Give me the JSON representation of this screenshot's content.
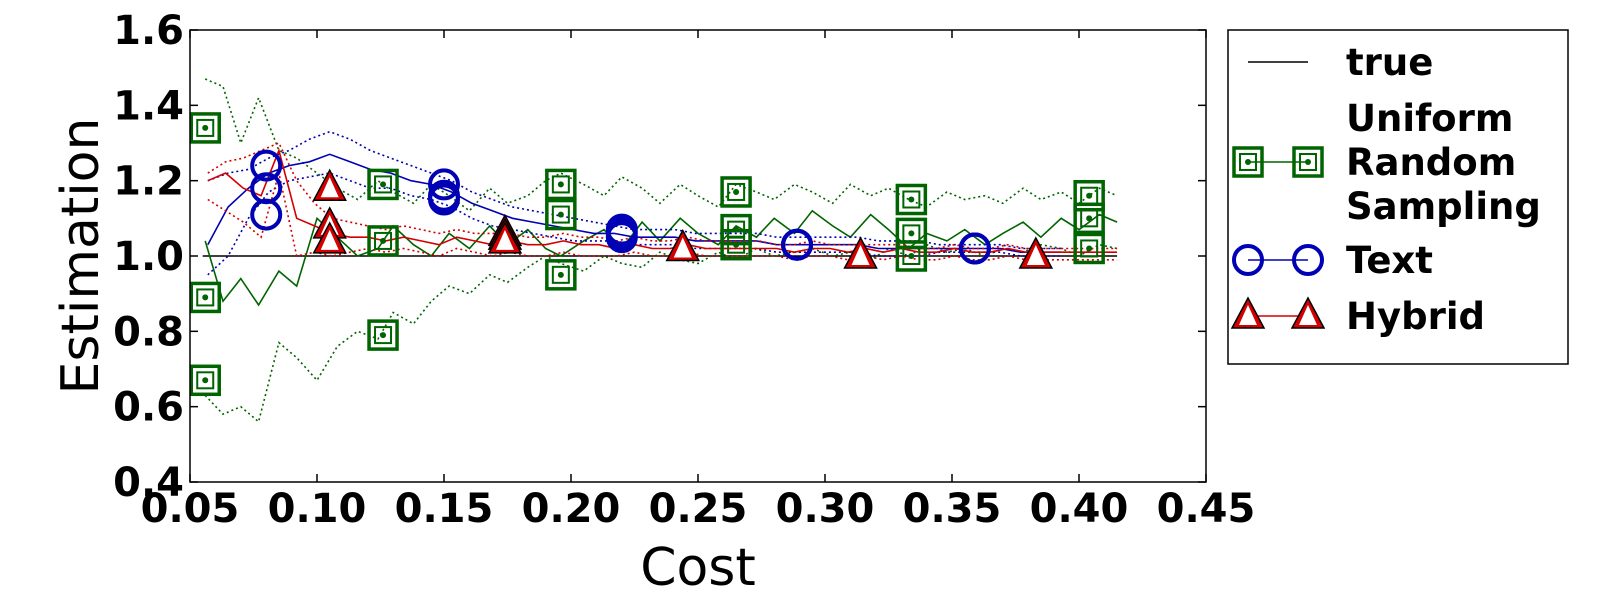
{
  "chart_data": {
    "type": "line",
    "xlabel": "Cost",
    "ylabel": "Estimation",
    "xlim": [
      0.05,
      0.45
    ],
    "ylim": [
      0.4,
      1.6
    ],
    "xticks": [
      "0.05",
      "0.10",
      "0.15",
      "0.20",
      "0.25",
      "0.30",
      "0.35",
      "0.40",
      "0.45"
    ],
    "yticks": [
      "0.4",
      "0.6",
      "0.8",
      "1.0",
      "1.2",
      "1.4",
      "1.6"
    ],
    "legend_position": "outside-right",
    "legend": [
      {
        "key": "true",
        "lines": [
          "true"
        ],
        "color": "#000000",
        "marker": "none"
      },
      {
        "key": "uniform",
        "lines": [
          "Uniform",
          "Random",
          "Sampling"
        ],
        "color": "#006400",
        "marker": "square"
      },
      {
        "key": "text",
        "lines": [
          "Text"
        ],
        "color": "#0000b4",
        "marker": "circle"
      },
      {
        "key": "hybrid",
        "lines": [
          "Hybrid"
        ],
        "color": "#d40000",
        "marker": "triangle"
      }
    ],
    "series": [
      {
        "key": "true",
        "name": "true",
        "color": "#000000",
        "x": [
          0.055,
          0.415
        ],
        "mean": [
          1.0,
          1.0
        ]
      },
      {
        "key": "uniform",
        "name": "Uniform Random Sampling",
        "color": "#006400",
        "x": [
          0.056,
          0.063,
          0.07,
          0.077,
          0.085,
          0.092,
          0.1,
          0.108,
          0.116,
          0.124,
          0.13,
          0.138,
          0.145,
          0.152,
          0.16,
          0.168,
          0.175,
          0.183,
          0.19,
          0.196,
          0.205,
          0.213,
          0.22,
          0.228,
          0.235,
          0.243,
          0.25,
          0.258,
          0.265,
          0.273,
          0.28,
          0.288,
          0.295,
          0.303,
          0.31,
          0.318,
          0.325,
          0.333,
          0.34,
          0.348,
          0.355,
          0.363,
          0.37,
          0.378,
          0.385,
          0.393,
          0.4,
          0.408,
          0.415
        ],
        "mean": [
          1.04,
          0.88,
          0.94,
          0.87,
          0.96,
          0.92,
          1.1,
          1.05,
          1.0,
          1.02,
          1.08,
          1.03,
          1.0,
          1.06,
          1.02,
          1.08,
          1.03,
          1.07,
          1.02,
          1.0,
          1.04,
          1.07,
          1.02,
          1.09,
          1.04,
          1.1,
          1.06,
          1.03,
          1.08,
          1.05,
          1.1,
          1.06,
          1.12,
          1.08,
          1.05,
          1.11,
          1.07,
          1.02,
          1.06,
          1.04,
          1.07,
          1.03,
          1.06,
          1.09,
          1.05,
          1.1,
          1.07,
          1.11,
          1.09
        ],
        "upper": [
          1.47,
          1.45,
          1.3,
          1.42,
          1.28,
          1.26,
          1.22,
          1.18,
          1.15,
          1.2,
          1.17,
          1.14,
          1.19,
          1.16,
          1.12,
          1.18,
          1.14,
          1.16,
          1.2,
          1.22,
          1.19,
          1.16,
          1.21,
          1.18,
          1.14,
          1.19,
          1.16,
          1.13,
          1.19,
          1.17,
          1.15,
          1.19,
          1.17,
          1.14,
          1.19,
          1.16,
          1.18,
          1.15,
          1.13,
          1.17,
          1.15,
          1.16,
          1.14,
          1.18,
          1.15,
          1.17,
          1.14,
          1.18,
          1.16
        ],
        "lower": [
          0.63,
          0.58,
          0.6,
          0.56,
          0.77,
          0.73,
          0.67,
          0.76,
          0.8,
          0.78,
          0.85,
          0.82,
          0.88,
          0.92,
          0.9,
          0.95,
          0.93,
          0.97,
          1.0,
          0.98,
          0.96,
          1.0,
          0.98,
          0.97,
          1.01,
          0.99,
          0.98,
          1.01,
          0.99,
          1.02,
          1.0,
          1.01,
          1.02,
          1.0,
          1.01,
          0.99,
          1.02,
          1.0,
          1.03,
          1.01,
          1.02,
          1.0,
          1.02,
          1.01,
          1.03,
          1.02,
          1.0,
          1.03,
          1.02
        ],
        "marker_points": [
          [
            0.056,
            1.34
          ],
          [
            0.056,
            0.89
          ],
          [
            0.056,
            0.67
          ],
          [
            0.126,
            1.19
          ],
          [
            0.126,
            1.04
          ],
          [
            0.126,
            0.79
          ],
          [
            0.196,
            1.19
          ],
          [
            0.196,
            1.11
          ],
          [
            0.196,
            0.95
          ],
          [
            0.265,
            1.17
          ],
          [
            0.265,
            1.07
          ],
          [
            0.265,
            1.03
          ],
          [
            0.334,
            1.15
          ],
          [
            0.334,
            1.06
          ],
          [
            0.334,
            1.0
          ],
          [
            0.404,
            1.16
          ],
          [
            0.404,
            1.1
          ],
          [
            0.404,
            1.02
          ]
        ]
      },
      {
        "key": "text",
        "name": "Text",
        "color": "#0000b4",
        "x": [
          0.057,
          0.065,
          0.073,
          0.081,
          0.089,
          0.097,
          0.105,
          0.113,
          0.121,
          0.129,
          0.137,
          0.145,
          0.153,
          0.161,
          0.169,
          0.177,
          0.185,
          0.193,
          0.201,
          0.209,
          0.217,
          0.225,
          0.233,
          0.241,
          0.249,
          0.257,
          0.265,
          0.273,
          0.281,
          0.289,
          0.297,
          0.305,
          0.313,
          0.321,
          0.329,
          0.337,
          0.345,
          0.353,
          0.361,
          0.369,
          0.377,
          0.385,
          0.393
        ],
        "mean": [
          1.03,
          1.13,
          1.18,
          1.22,
          1.24,
          1.25,
          1.27,
          1.25,
          1.23,
          1.22,
          1.2,
          1.19,
          1.17,
          1.14,
          1.12,
          1.1,
          1.09,
          1.08,
          1.07,
          1.06,
          1.06,
          1.05,
          1.05,
          1.05,
          1.04,
          1.04,
          1.04,
          1.04,
          1.03,
          1.03,
          1.03,
          1.03,
          1.03,
          1.02,
          1.02,
          1.02,
          1.02,
          1.02,
          1.02,
          1.02,
          1.01,
          1.01,
          1.01
        ],
        "upper": [
          1.2,
          1.22,
          1.23,
          1.26,
          1.28,
          1.31,
          1.33,
          1.31,
          1.28,
          1.26,
          1.24,
          1.22,
          1.2,
          1.17,
          1.15,
          1.13,
          1.12,
          1.11,
          1.1,
          1.09,
          1.08,
          1.07,
          1.07,
          1.07,
          1.06,
          1.06,
          1.06,
          1.06,
          1.05,
          1.05,
          1.05,
          1.05,
          1.05,
          1.04,
          1.04,
          1.04,
          1.03,
          1.03,
          1.03,
          1.03,
          1.02,
          1.02,
          1.02
        ],
        "lower": [
          0.95,
          1.0,
          1.1,
          1.17,
          1.2,
          1.21,
          1.22,
          1.2,
          1.18,
          1.18,
          1.16,
          1.15,
          1.13,
          1.1,
          1.08,
          1.07,
          1.06,
          1.05,
          1.04,
          1.04,
          1.04,
          1.03,
          1.03,
          1.03,
          1.02,
          1.02,
          1.02,
          1.02,
          1.01,
          1.01,
          1.01,
          1.01,
          1.01,
          1.0,
          1.0,
          1.0,
          1.01,
          1.01,
          1.01,
          1.01,
          1.0,
          1.0,
          1.0
        ],
        "marker_points": [
          [
            0.08,
            1.24
          ],
          [
            0.08,
            1.18
          ],
          [
            0.08,
            1.11
          ],
          [
            0.15,
            1.19
          ],
          [
            0.15,
            1.16
          ],
          [
            0.15,
            1.15
          ],
          [
            0.22,
            1.07
          ],
          [
            0.22,
            1.06
          ],
          [
            0.22,
            1.05
          ],
          [
            0.289,
            1.03
          ],
          [
            0.289,
            1.03
          ],
          [
            0.289,
            1.03
          ],
          [
            0.359,
            1.02
          ],
          [
            0.359,
            1.02
          ],
          [
            0.359,
            1.02
          ]
        ]
      },
      {
        "key": "hybrid",
        "name": "Hybrid",
        "color": "#d40000",
        "x": [
          0.057,
          0.064,
          0.071,
          0.078,
          0.085,
          0.092,
          0.099,
          0.106,
          0.113,
          0.12,
          0.127,
          0.134,
          0.141,
          0.148,
          0.155,
          0.162,
          0.169,
          0.176,
          0.183,
          0.19,
          0.197,
          0.204,
          0.211,
          0.218,
          0.225,
          0.232,
          0.239,
          0.246,
          0.253,
          0.26,
          0.267,
          0.274,
          0.281,
          0.288,
          0.295,
          0.302,
          0.309,
          0.316,
          0.323,
          0.33,
          0.337,
          0.344,
          0.351,
          0.358,
          0.365,
          0.372,
          0.379,
          0.386,
          0.393,
          0.4,
          0.407,
          0.415
        ],
        "mean": [
          1.2,
          1.22,
          1.18,
          1.16,
          1.28,
          1.1,
          1.08,
          1.06,
          1.05,
          1.05,
          1.04,
          1.05,
          1.04,
          1.03,
          1.05,
          1.04,
          1.03,
          1.04,
          1.03,
          1.03,
          1.04,
          1.03,
          1.03,
          1.02,
          1.03,
          1.02,
          1.02,
          1.03,
          1.02,
          1.02,
          1.02,
          1.02,
          1.02,
          1.01,
          1.02,
          1.02,
          1.01,
          1.02,
          1.01,
          1.02,
          1.01,
          1.01,
          1.02,
          1.01,
          1.01,
          1.02,
          1.01,
          1.01,
          1.01,
          1.01,
          1.01,
          1.01
        ],
        "upper": [
          1.22,
          1.25,
          1.26,
          1.28,
          1.3,
          1.2,
          1.14,
          1.1,
          1.09,
          1.08,
          1.07,
          1.08,
          1.07,
          1.06,
          1.07,
          1.06,
          1.06,
          1.06,
          1.05,
          1.05,
          1.06,
          1.05,
          1.05,
          1.04,
          1.05,
          1.04,
          1.04,
          1.05,
          1.04,
          1.04,
          1.04,
          1.04,
          1.03,
          1.03,
          1.04,
          1.03,
          1.03,
          1.03,
          1.03,
          1.03,
          1.02,
          1.02,
          1.03,
          1.02,
          1.02,
          1.03,
          1.02,
          1.02,
          1.02,
          1.02,
          1.02,
          1.02
        ],
        "lower": [
          1.15,
          1.12,
          1.09,
          1.05,
          1.22,
          1.0,
          1.01,
          1.0,
          1.01,
          1.02,
          1.01,
          1.02,
          1.01,
          1.0,
          1.02,
          1.01,
          1.0,
          1.01,
          1.0,
          1.0,
          1.01,
          1.0,
          1.0,
          1.0,
          1.01,
          1.0,
          1.0,
          1.01,
          1.0,
          1.0,
          1.0,
          1.0,
          1.0,
          0.99,
          1.0,
          1.0,
          0.99,
          1.0,
          0.99,
          1.0,
          0.99,
          0.99,
          1.0,
          0.99,
          0.99,
          1.0,
          0.99,
          0.99,
          0.99,
          0.99,
          0.99,
          0.99
        ],
        "marker_points": [
          [
            0.105,
            1.18
          ],
          [
            0.105,
            1.08
          ],
          [
            0.105,
            1.04
          ],
          [
            0.174,
            1.06
          ],
          [
            0.174,
            1.05
          ],
          [
            0.174,
            1.04
          ],
          [
            0.244,
            1.02
          ],
          [
            0.314,
            1.0
          ],
          [
            0.383,
            1.0
          ]
        ]
      }
    ]
  }
}
